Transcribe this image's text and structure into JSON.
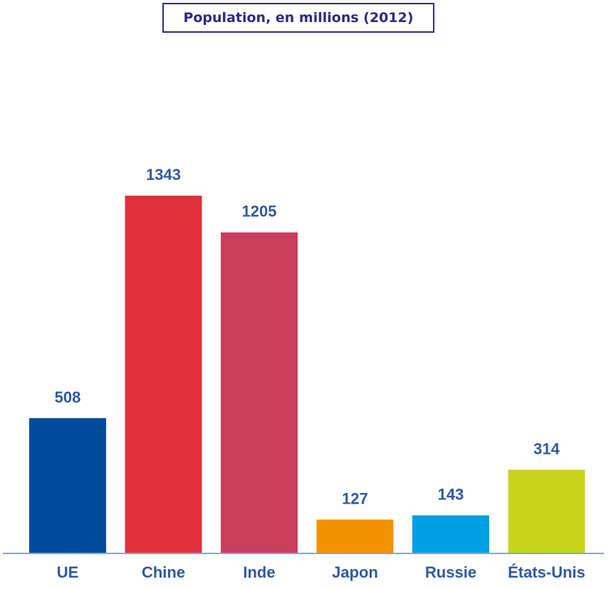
{
  "chart_data": {
    "type": "bar",
    "title": "Population, en millions (2012)",
    "categories": [
      "UE",
      "Chine",
      "Inde",
      "Japon",
      "Russie",
      "États-Unis"
    ],
    "values": [
      508,
      1343,
      1205,
      127,
      143,
      314
    ],
    "colors": [
      "#004b9b",
      "#e0303a",
      "#c8405c",
      "#f39200",
      "#009fe3",
      "#c8d41c"
    ],
    "axis_color": "#8aa4c8",
    "label_color": "#2e5aa0",
    "grid": false,
    "legend": "none"
  }
}
